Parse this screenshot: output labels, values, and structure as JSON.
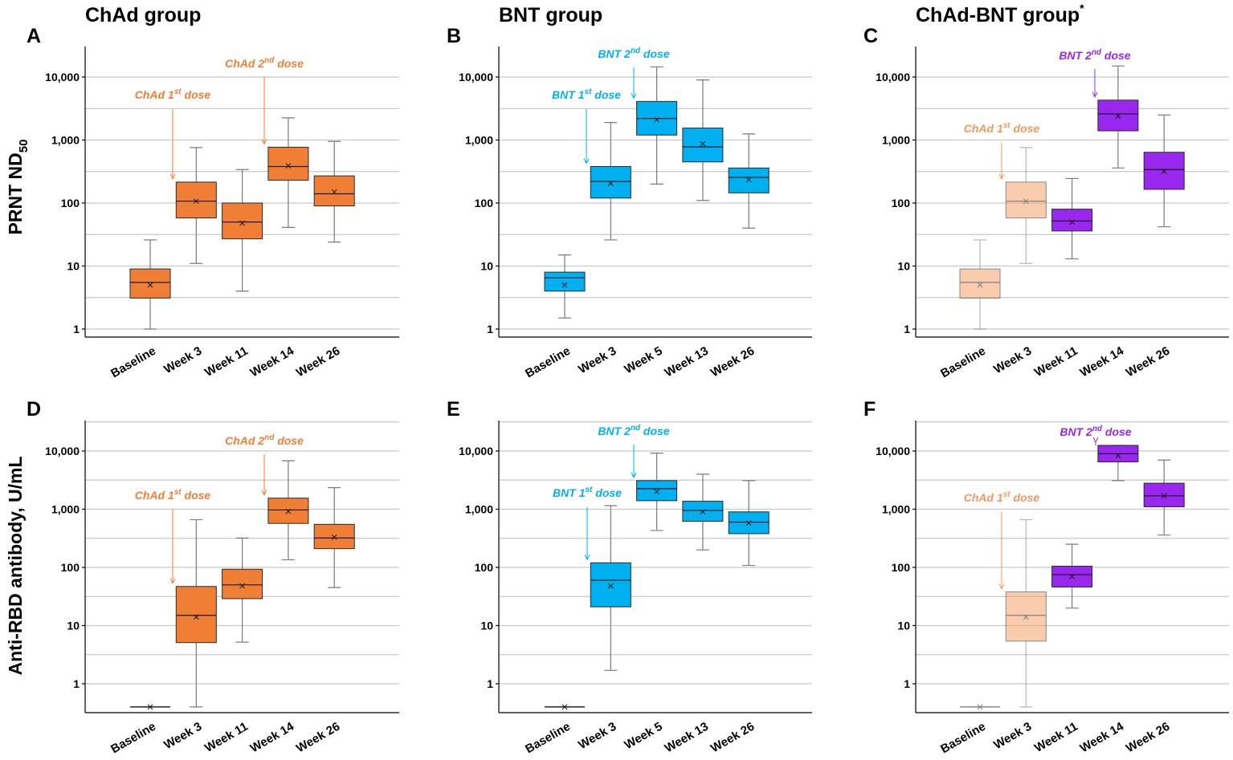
{
  "colors": {
    "chad": "#F07F35",
    "chad_light": "#F4A46B",
    "bnt": "#00B0F0",
    "purple": "#9A27F0"
  },
  "groups": {
    "chad": "ChAd group",
    "bnt": "BNT group",
    "mix": "ChAd-BNT group",
    "mix_sup": "*"
  },
  "y_titles": {
    "top": "PRNT ND",
    "top_sub": "50",
    "bottom": "Anti-RBD antibody, U/mL"
  },
  "tick_labels": [
    "1",
    "10",
    "100",
    "1,000",
    "10,000"
  ],
  "chart_data": [
    {
      "type": "box",
      "panel": "A",
      "title": "ChAd group",
      "ylabel": "PRNT ND50",
      "yscale": "log",
      "ylim": [
        0.85,
        30000
      ],
      "xlabel": "",
      "categories": [
        "Baseline",
        "Week 3",
        "Week 11",
        "Week 14",
        "Week 26"
      ],
      "series": [
        {
          "category": "Baseline",
          "min": 1,
          "q1": 3.1,
          "median": 5.5,
          "q3": 9,
          "max": 26,
          "mean": 5,
          "color": "chad"
        },
        {
          "category": "Week 3",
          "min": 11,
          "q1": 58,
          "median": 107,
          "q3": 215,
          "max": 760,
          "mean": 107,
          "color": "chad"
        },
        {
          "category": "Week 11",
          "min": 4,
          "q1": 27,
          "median": 50,
          "q3": 100,
          "max": 340,
          "mean": 48,
          "color": "chad"
        },
        {
          "category": "Week 14",
          "min": 41,
          "q1": 230,
          "median": 380,
          "q3": 770,
          "max": 2250,
          "mean": 390,
          "color": "chad"
        },
        {
          "category": "Week 26",
          "min": 24,
          "q1": 90,
          "median": 140,
          "q3": 270,
          "max": 950,
          "mean": 150,
          "color": "chad"
        }
      ],
      "annotations": [
        {
          "base": "ChAd 1",
          "sup": "st",
          "tail": " dose",
          "color": "chad",
          "target": "Week 3"
        },
        {
          "base": "ChAd 2",
          "sup": "nd",
          "tail": " dose",
          "color": "chad",
          "target": "Week 14"
        }
      ]
    },
    {
      "type": "box",
      "panel": "B",
      "title": "BNT group",
      "ylabel": "PRNT ND50",
      "yscale": "log",
      "ylim": [
        0.85,
        30000
      ],
      "xlabel": "",
      "categories": [
        "Baseline",
        "Week 3",
        "Week 5",
        "Week 13",
        "Week 26"
      ],
      "series": [
        {
          "category": "Baseline",
          "min": 1.5,
          "q1": 4,
          "median": 6.5,
          "q3": 8,
          "max": 15,
          "mean": 5,
          "color": "bnt"
        },
        {
          "category": "Week 3",
          "min": 26,
          "q1": 120,
          "median": 220,
          "q3": 380,
          "max": 1900,
          "mean": 205,
          "color": "bnt"
        },
        {
          "category": "Week 5",
          "min": 200,
          "q1": 1200,
          "median": 2200,
          "q3": 4100,
          "max": 14500,
          "mean": 2100,
          "color": "bnt"
        },
        {
          "category": "Week 13",
          "min": 110,
          "q1": 450,
          "median": 780,
          "q3": 1550,
          "max": 9000,
          "mean": 870,
          "color": "bnt"
        },
        {
          "category": "Week 26",
          "min": 40,
          "q1": 145,
          "median": 255,
          "q3": 360,
          "max": 1250,
          "mean": 235,
          "color": "bnt"
        }
      ],
      "annotations": [
        {
          "base": "BNT 1",
          "sup": "st",
          "tail": " dose",
          "color": "bnt",
          "target": "Week 3"
        },
        {
          "base": "BNT 2",
          "sup": "nd",
          "tail": " dose",
          "color": "bnt",
          "target": "Week 5"
        }
      ]
    },
    {
      "type": "box",
      "panel": "C",
      "title": "ChAd-BNT group*",
      "ylabel": "PRNT ND50",
      "yscale": "log",
      "ylim": [
        0.85,
        30000
      ],
      "xlabel": "",
      "categories": [
        "Baseline",
        "Week 3",
        "Week 11",
        "Week 14",
        "Week 26"
      ],
      "series": [
        {
          "category": "Baseline",
          "min": 1,
          "q1": 3.1,
          "median": 5.5,
          "q3": 9,
          "max": 26,
          "mean": 5,
          "color": "chad_light",
          "faded": true
        },
        {
          "category": "Week 3",
          "min": 11,
          "q1": 58,
          "median": 107,
          "q3": 215,
          "max": 760,
          "mean": 107,
          "color": "chad_light",
          "faded": true
        },
        {
          "category": "Week 11",
          "min": 13,
          "q1": 36,
          "median": 52,
          "q3": 80,
          "max": 245,
          "mean": 50,
          "color": "purple"
        },
        {
          "category": "Week 14",
          "min": 360,
          "q1": 1400,
          "median": 2600,
          "q3": 4300,
          "max": 15000,
          "mean": 2400,
          "color": "purple"
        },
        {
          "category": "Week 26",
          "min": 42,
          "q1": 165,
          "median": 340,
          "q3": 640,
          "max": 2500,
          "mean": 320,
          "color": "purple"
        }
      ],
      "annotations": [
        {
          "base": "ChAd 1",
          "sup": "st",
          "tail": " dose",
          "color": "chad",
          "target": "Week 3"
        },
        {
          "base": "BNT 2",
          "sup": "nd",
          "tail": " dose",
          "color": "purple",
          "target": "Week 14"
        }
      ]
    },
    {
      "type": "box",
      "panel": "D",
      "title": "",
      "ylabel": "Anti-RBD antibody, U/mL",
      "yscale": "log",
      "ylim": [
        0.33,
        30000
      ],
      "xlabel": "",
      "categories": [
        "Baseline",
        "Week 3",
        "Week 11",
        "Week 14",
        "Week 26"
      ],
      "series": [
        {
          "category": "Baseline",
          "min": 0.4,
          "q1": 0.4,
          "median": 0.4,
          "q3": 0.4,
          "max": 0.4,
          "mean": 0.4,
          "color": "chad"
        },
        {
          "category": "Week 3",
          "min": 0.4,
          "q1": 5.1,
          "median": 15,
          "q3": 47,
          "max": 660,
          "mean": 14,
          "color": "chad"
        },
        {
          "category": "Week 11",
          "min": 5.2,
          "q1": 29,
          "median": 50,
          "q3": 93,
          "max": 320,
          "mean": 48,
          "color": "chad"
        },
        {
          "category": "Week 14",
          "min": 135,
          "q1": 570,
          "median": 970,
          "q3": 1550,
          "max": 6800,
          "mean": 920,
          "color": "chad"
        },
        {
          "category": "Week 26",
          "min": 45,
          "q1": 210,
          "median": 320,
          "q3": 550,
          "max": 2350,
          "mean": 330,
          "color": "chad"
        }
      ],
      "annotations": [
        {
          "base": "ChAd 1",
          "sup": "st",
          "tail": " dose",
          "color": "chad",
          "target": "Week 3"
        },
        {
          "base": "ChAd 2",
          "sup": "nd",
          "tail": " dose",
          "color": "chad",
          "target": "Week 14"
        }
      ]
    },
    {
      "type": "box",
      "panel": "E",
      "title": "",
      "ylabel": "Anti-RBD antibody, U/mL",
      "yscale": "log",
      "ylim": [
        0.33,
        30000
      ],
      "xlabel": "",
      "categories": [
        "Baseline",
        "Week 3",
        "Week 5",
        "Week 13",
        "Week 26"
      ],
      "series": [
        {
          "category": "Baseline",
          "min": 0.4,
          "q1": 0.4,
          "median": 0.4,
          "q3": 0.4,
          "max": 0.4,
          "mean": 0.4,
          "color": "bnt"
        },
        {
          "category": "Week 3",
          "min": 1.7,
          "q1": 21,
          "median": 60,
          "q3": 120,
          "max": 1150,
          "mean": 48,
          "color": "bnt"
        },
        {
          "category": "Week 5",
          "min": 430,
          "q1": 1400,
          "median": 2250,
          "q3": 3100,
          "max": 9200,
          "mean": 2000,
          "color": "bnt"
        },
        {
          "category": "Week 13",
          "min": 200,
          "q1": 620,
          "median": 950,
          "q3": 1370,
          "max": 4000,
          "mean": 900,
          "color": "bnt"
        },
        {
          "category": "Week 26",
          "min": 108,
          "q1": 380,
          "median": 600,
          "q3": 900,
          "max": 3100,
          "mean": 580,
          "color": "bnt"
        }
      ],
      "annotations": [
        {
          "base": "BNT 1",
          "sup": "st",
          "tail": " dose",
          "color": "bnt",
          "target": "Week 3"
        },
        {
          "base": "BNT 2",
          "sup": "nd",
          "tail": " dose",
          "color": "bnt",
          "target": "Week 5"
        }
      ]
    },
    {
      "type": "box",
      "panel": "F",
      "title": "",
      "ylabel": "Anti-RBD antibody, U/mL",
      "yscale": "log",
      "ylim": [
        0.33,
        30000
      ],
      "xlabel": "",
      "categories": [
        "Baseline",
        "Week 3",
        "Week 11",
        "Week 14",
        "Week 26"
      ],
      "series": [
        {
          "category": "Baseline",
          "min": 0.4,
          "q1": 0.4,
          "median": 0.4,
          "q3": 0.4,
          "max": 0.4,
          "mean": 0.4,
          "color": "chad_light",
          "faded": true
        },
        {
          "category": "Week 3",
          "min": 0.4,
          "q1": 5.4,
          "median": 15,
          "q3": 38,
          "max": 660,
          "mean": 14,
          "color": "chad_light",
          "faded": true
        },
        {
          "category": "Week 11",
          "min": 20,
          "q1": 46,
          "median": 75,
          "q3": 105,
          "max": 250,
          "mean": 70,
          "color": "purple"
        },
        {
          "category": "Week 14",
          "min": 3100,
          "q1": 6500,
          "median": 9000,
          "q3": 12500,
          "max": 12500,
          "mean": 8300,
          "color": "purple"
        },
        {
          "category": "Week 26",
          "min": 360,
          "q1": 1100,
          "median": 1700,
          "q3": 2800,
          "max": 7000,
          "mean": 1700,
          "color": "purple"
        }
      ],
      "annotations": [
        {
          "base": "ChAd 1",
          "sup": "st",
          "tail": " dose",
          "color": "chad",
          "target": "Week 3"
        },
        {
          "base": "BNT 2",
          "sup": "nd",
          "tail": " dose",
          "color": "purple",
          "target": "Week 14"
        }
      ]
    }
  ]
}
